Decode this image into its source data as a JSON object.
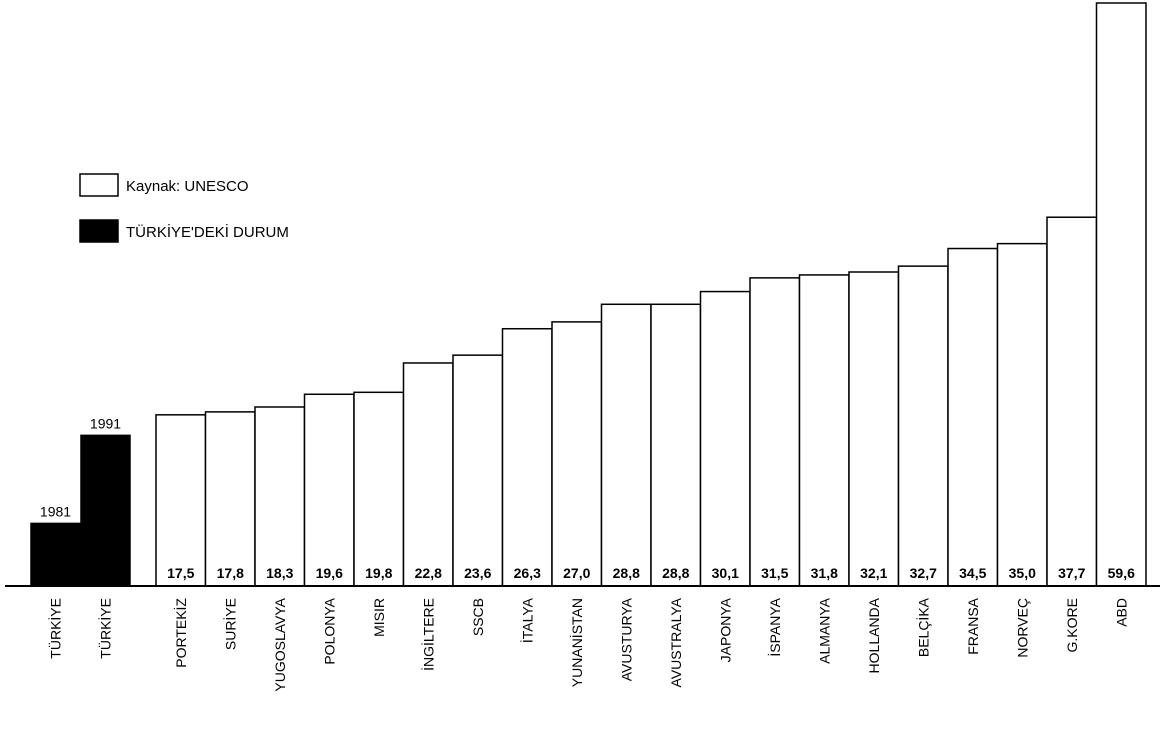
{
  "chart_data": {
    "type": "bar",
    "title": "",
    "xlabel": "",
    "ylabel": "",
    "ylim": [
      0,
      59.6
    ],
    "grid": false,
    "legend_position": "upper-left",
    "legend": [
      {
        "label": "Kaynak: UNESCO",
        "swatch": "white"
      },
      {
        "label": "TÜRKİYE'DEKİ DURUM",
        "swatch": "black"
      }
    ],
    "turkey": {
      "name": "TÜRKİYE'DEKİ DURUM",
      "color": "#000000",
      "categories": [
        "TÜRKİYE",
        "TÜRKİYE"
      ],
      "years": [
        "1981",
        "1991"
      ],
      "values": [
        6.4,
        15.4
      ]
    },
    "series": [
      {
        "name": "Kaynak: UNESCO",
        "color": "#ffffff",
        "categories": [
          "PORTEKİZ",
          "SURİYE",
          "YUGOSLAVYA",
          "POLONYA",
          "MISIR",
          "İNGİLTERE",
          "SSCB",
          "İTALYA",
          "YUNANİSTAN",
          "AVUSTURYA",
          "AVUSTRALYA",
          "JAPONYA",
          "İSPANYA",
          "ALMANYA",
          "HOLLANDA",
          "BELÇİKA",
          "FRANSA",
          "NORVEÇ",
          "G.KORE",
          "ABD"
        ],
        "values": [
          17.5,
          17.8,
          18.3,
          19.6,
          19.8,
          22.8,
          23.6,
          26.3,
          27.0,
          28.8,
          28.8,
          30.1,
          31.5,
          31.8,
          32.1,
          32.7,
          34.5,
          35.0,
          37.7,
          59.6
        ],
        "labels": [
          "17,5",
          "17,8",
          "18,3",
          "19,6",
          "19,8",
          "22,8",
          "23,6",
          "26,3",
          "27,0",
          "28,8",
          "28,8",
          "30,1",
          "31,5",
          "31,8",
          "32,1",
          "32,7",
          "34,5",
          "35,0",
          "37,7",
          "59,6"
        ]
      }
    ]
  }
}
